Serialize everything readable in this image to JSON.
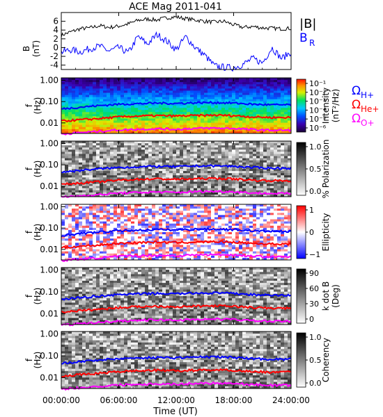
{
  "chart_data": {
    "type": "line",
    "title": "ACE Mag 2011-041",
    "xlabel": "Time (UT)",
    "x_tick_labels": [
      "00:00:00",
      "06:00:00",
      "12:00:00",
      "18:00:00",
      "24:00:00"
    ],
    "x_ticks_hours": [
      0,
      6,
      12,
      18,
      24
    ],
    "xlim_hours": [
      0,
      24
    ],
    "panels": [
      {
        "id": "field",
        "type": "line",
        "ylabel": "B",
        "yunit": "(nT)",
        "ylim": [
          -5,
          8
        ],
        "yticks": [
          -4,
          -2,
          0,
          2,
          4,
          6
        ],
        "ytick_labels": [
          "-4",
          "-2",
          "0",
          "2",
          "4",
          "6"
        ],
        "legend": [
          "|B|",
          "B",
          "R"
        ],
        "series": [
          {
            "name": "|B|",
            "color": "#000000",
            "x": [
              0,
              1,
              2,
              3,
              4,
              5,
              6,
              7,
              8,
              9,
              10,
              11,
              12,
              13,
              14,
              15,
              16,
              17,
              18,
              19,
              20,
              21,
              22,
              23,
              24
            ],
            "values": [
              2.8,
              3.6,
              4.3,
              4.5,
              5.0,
              4.6,
              4.9,
              5.4,
              6.2,
              6.5,
              6.3,
              6.8,
              7.0,
              6.6,
              6.3,
              6.0,
              5.8,
              6.0,
              5.2,
              4.6,
              4.8,
              4.5,
              4.4,
              4.3,
              4.4
            ]
          },
          {
            "name": "B_R",
            "color": "#0000ff",
            "x": [
              0,
              1,
              2,
              3,
              4,
              5,
              6,
              7,
              8,
              9,
              10,
              11,
              12,
              13,
              14,
              15,
              16,
              17,
              18,
              19,
              20,
              21,
              22,
              23,
              24
            ],
            "values": [
              -1.0,
              -0.5,
              -1.0,
              -0.2,
              0.3,
              -0.8,
              0.0,
              -1.2,
              2.5,
              0.8,
              3.0,
              1.5,
              -0.5,
              2.5,
              0.0,
              -1.8,
              -4.2,
              -4.5,
              -4.6,
              -3.8,
              -2.5,
              -3.5,
              0.0,
              -2.5,
              -1.0
            ]
          }
        ]
      },
      {
        "id": "intensity",
        "type": "heatmap",
        "ylabel": "f",
        "yunit": "(Hz)",
        "yscale": "log",
        "ylim": [
          0.003,
          1.2
        ],
        "ytick_labels": [
          "1.00",
          "0.10",
          "0.01"
        ],
        "yticks": [
          1.0,
          0.1,
          0.01
        ],
        "colorbar_label": "Intensity",
        "colorbar_unit": "(nT²/Hz)",
        "colorbar_ticks": [
          "10⁻¹",
          "10⁻²",
          "10⁻³",
          "10⁻⁴",
          "10⁻⁵",
          "10⁻⁶"
        ],
        "colormap": "rainbow",
        "right_labels": [
          {
            "symbol": "Ω",
            "sub": "H+",
            "color": "#0000ff"
          },
          {
            "symbol": "Ω",
            "sub": "He+",
            "color": "#ff0000"
          },
          {
            "symbol": "Ω",
            "sub": "O+",
            "color": "#ff00ff"
          }
        ]
      },
      {
        "id": "polarization",
        "type": "heatmap",
        "ylabel": "f",
        "yunit": "(Hz)",
        "yscale": "log",
        "ytick_labels": [
          "1.00",
          "0.10",
          "0.01"
        ],
        "yticks": [
          1.0,
          0.1,
          0.01
        ],
        "colorbar_label": "% Polarization",
        "colorbar_unit": "",
        "colorbar_ticks": [
          "1.0",
          "0.5",
          "0.0"
        ],
        "colormap": "gray"
      },
      {
        "id": "ellipticity",
        "type": "heatmap",
        "ylabel": "f",
        "yunit": "(Hz)",
        "yscale": "log",
        "ytick_labels": [
          "1.00",
          "0.10",
          "0.01"
        ],
        "yticks": [
          1.0,
          0.1,
          0.01
        ],
        "colorbar_label": "Ellipticity",
        "colorbar_unit": "",
        "colorbar_ticks": [
          "1",
          "0",
          "−1"
        ],
        "colormap": "bwr"
      },
      {
        "id": "kdotb",
        "type": "heatmap",
        "ylabel": "f",
        "yunit": "(Hz)",
        "yscale": "log",
        "ytick_labels": [
          "1.00",
          "0.10",
          "0.01"
        ],
        "yticks": [
          1.0,
          0.1,
          0.01
        ],
        "colorbar_label": "k dot B",
        "colorbar_unit": "(Deg)",
        "colorbar_ticks": [
          "90",
          "60",
          "30",
          "0"
        ],
        "colormap": "gray"
      },
      {
        "id": "coherency",
        "type": "heatmap",
        "ylabel": "f",
        "yunit": "(Hz)",
        "yscale": "log",
        "ytick_labels": [
          "1.00",
          "0.10",
          "0.01"
        ],
        "yticks": [
          1.0,
          0.1,
          0.01
        ],
        "colorbar_label": "Coherency",
        "colorbar_unit": "",
        "colorbar_ticks": [
          "1.0",
          "0.5",
          "0.0"
        ],
        "colormap": "gray"
      }
    ],
    "gyrofrequency_lines": [
      {
        "name": "ΩH+",
        "color": "#0000ff",
        "x": [
          0,
          2,
          4,
          6,
          8,
          10,
          12,
          14,
          16,
          18,
          20,
          22,
          24
        ],
        "values": [
          0.045,
          0.055,
          0.065,
          0.075,
          0.08,
          0.085,
          0.082,
          0.088,
          0.09,
          0.085,
          0.075,
          0.07,
          0.07
        ]
      },
      {
        "name": "ΩHe+",
        "color": "#ff0000",
        "x": [
          0,
          2,
          4,
          6,
          8,
          10,
          12,
          14,
          16,
          18,
          20,
          22,
          24
        ],
        "values": [
          0.012,
          0.014,
          0.016,
          0.019,
          0.021,
          0.022,
          0.021,
          0.022,
          0.023,
          0.022,
          0.019,
          0.018,
          0.018
        ]
      },
      {
        "name": "ΩO+",
        "color": "#ff00ff",
        "x": [
          0,
          2,
          4,
          6,
          8,
          10,
          12,
          14,
          16,
          18,
          20,
          22,
          24
        ],
        "values": [
          0.003,
          0.0035,
          0.004,
          0.0047,
          0.005,
          0.0053,
          0.005,
          0.0055,
          0.0057,
          0.0055,
          0.0048,
          0.0045,
          0.0045
        ]
      }
    ]
  }
}
